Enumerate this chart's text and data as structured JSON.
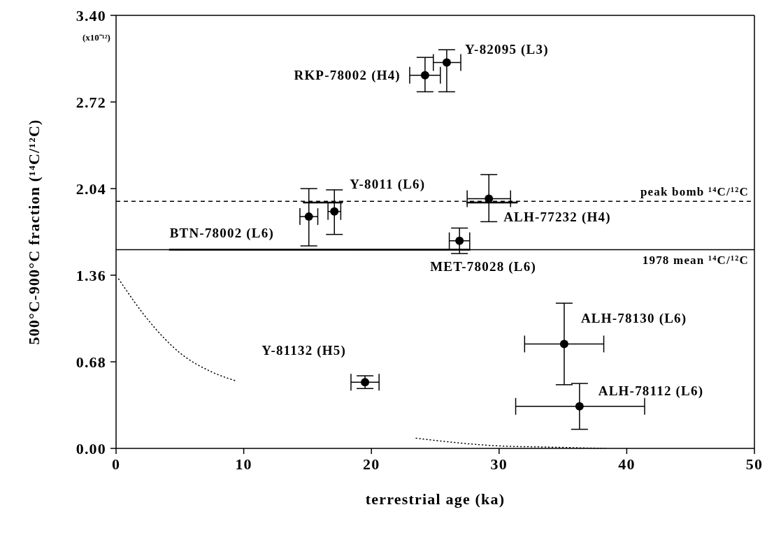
{
  "chart_data": {
    "type": "scatter",
    "xlabel": "terrestrial age (ka)",
    "ylabel": "500°C-900°C fraction (¹⁴C/¹²C)",
    "xlim": [
      0,
      50
    ],
    "xticks": [
      0,
      10,
      20,
      30,
      40,
      50
    ],
    "ylim": [
      0,
      3.4
    ],
    "yticks": [
      {
        "value": 0,
        "label": "0.00"
      },
      0.68,
      1.36,
      2.04,
      2.72,
      {
        "value": 3.4,
        "label": "3.40"
      }
    ],
    "grid": false,
    "legend": false,
    "series": [
      {
        "color": "#000000",
        "marker": "circle",
        "x": [
          25.9,
          24.2,
          15.1,
          17.1,
          29.2,
          26.9,
          19.5,
          35.1,
          36.3
        ],
        "values": [
          3.03,
          2.93,
          1.82,
          1.86,
          1.96,
          1.63,
          0.52,
          0.82,
          0.33
        ],
        "errors": [
          [
            2.8,
            3.13
          ],
          [
            2.8,
            3.07
          ],
          [
            1.59,
            2.04
          ],
          [
            1.68,
            2.03
          ],
          [
            1.78,
            2.15
          ],
          [
            1.53,
            1.73
          ],
          [
            0.47,
            0.57
          ],
          [
            0.5,
            1.14
          ],
          [
            0.15,
            0.51
          ]
        ],
        "xerrors": [
          [
            24.85,
            27.0
          ],
          [
            23.0,
            25.4
          ],
          [
            14.4,
            15.8
          ],
          [
            16.6,
            17.6
          ],
          [
            27.5,
            30.9
          ],
          [
            26.1,
            27.7
          ],
          [
            18.4,
            20.6
          ],
          [
            32.0,
            38.2
          ],
          [
            31.3,
            41.4
          ]
        ]
      },
      {
        "type": "line",
        "color": "#000000",
        "marker": "none",
        "line_style": "solid",
        "x": [
          14.7,
          17.7
        ],
        "values": [
          1.93,
          1.93
        ]
      },
      {
        "type": "line",
        "color": "#000000",
        "marker": "none",
        "line_style": "solid",
        "x": [
          27.5,
          31.4
        ],
        "values": [
          1.93,
          1.93
        ]
      },
      {
        "type": "line",
        "color": "#000000",
        "marker": "none",
        "line_style": "solid",
        "x": [
          4.2,
          27.7
        ],
        "values": [
          1.56,
          1.56
        ]
      },
      {
        "type": "line",
        "color": "#000000",
        "marker": "none",
        "line_style": "dotted",
        "x": [
          0.2,
          2.5,
          5.0,
          7.5,
          9.4
        ],
        "values": [
          1.33,
          1.01,
          0.75,
          0.6,
          0.53
        ]
      },
      {
        "type": "line",
        "color": "#000000",
        "marker": "none",
        "line_style": "dotted",
        "x": [
          23.5,
          29.9,
          34.0,
          38.4
        ],
        "values": [
          0.08,
          0.02,
          0.01,
          0.0
        ]
      }
    ],
    "ref_lines": [
      {
        "axis": "y",
        "value": 1.94,
        "label": "peak bomb ¹⁴C/¹²C",
        "line_style": "dashed",
        "color": "#000000"
      },
      {
        "axis": "y",
        "value": 1.56,
        "label": "1978 mean ¹⁴C/¹²C",
        "line_style": "solid",
        "color": "#000000"
      }
    ],
    "annotations": [
      "(x10⁻¹²)",
      {
        "text": "Y-82095 (L3)",
        "x": 25.9,
        "y": 3.03
      },
      {
        "text": "RKP-78002 (H4)",
        "x": 24.2,
        "y": 2.93
      },
      {
        "text": "Y-8011 (L6)",
        "x": 17.1,
        "y": 1.86
      },
      {
        "text": "ALH-77232 (H4)",
        "x": 29.2,
        "y": 1.96
      },
      {
        "text": "BTN-78002 (L6)",
        "x": 4.2,
        "y": 1.56
      },
      {
        "text": "MET-78028 (L6)",
        "x": 26.9,
        "y": 1.63
      },
      {
        "text": "Y-81132 (H5)",
        "x": 19.5,
        "y": 0.52
      },
      {
        "text": "ALH-78130 (L6)",
        "x": 35.1,
        "y": 0.82
      },
      {
        "text": "ALH-78112 (L6)",
        "x": 36.3,
        "y": 0.33
      }
    ]
  }
}
